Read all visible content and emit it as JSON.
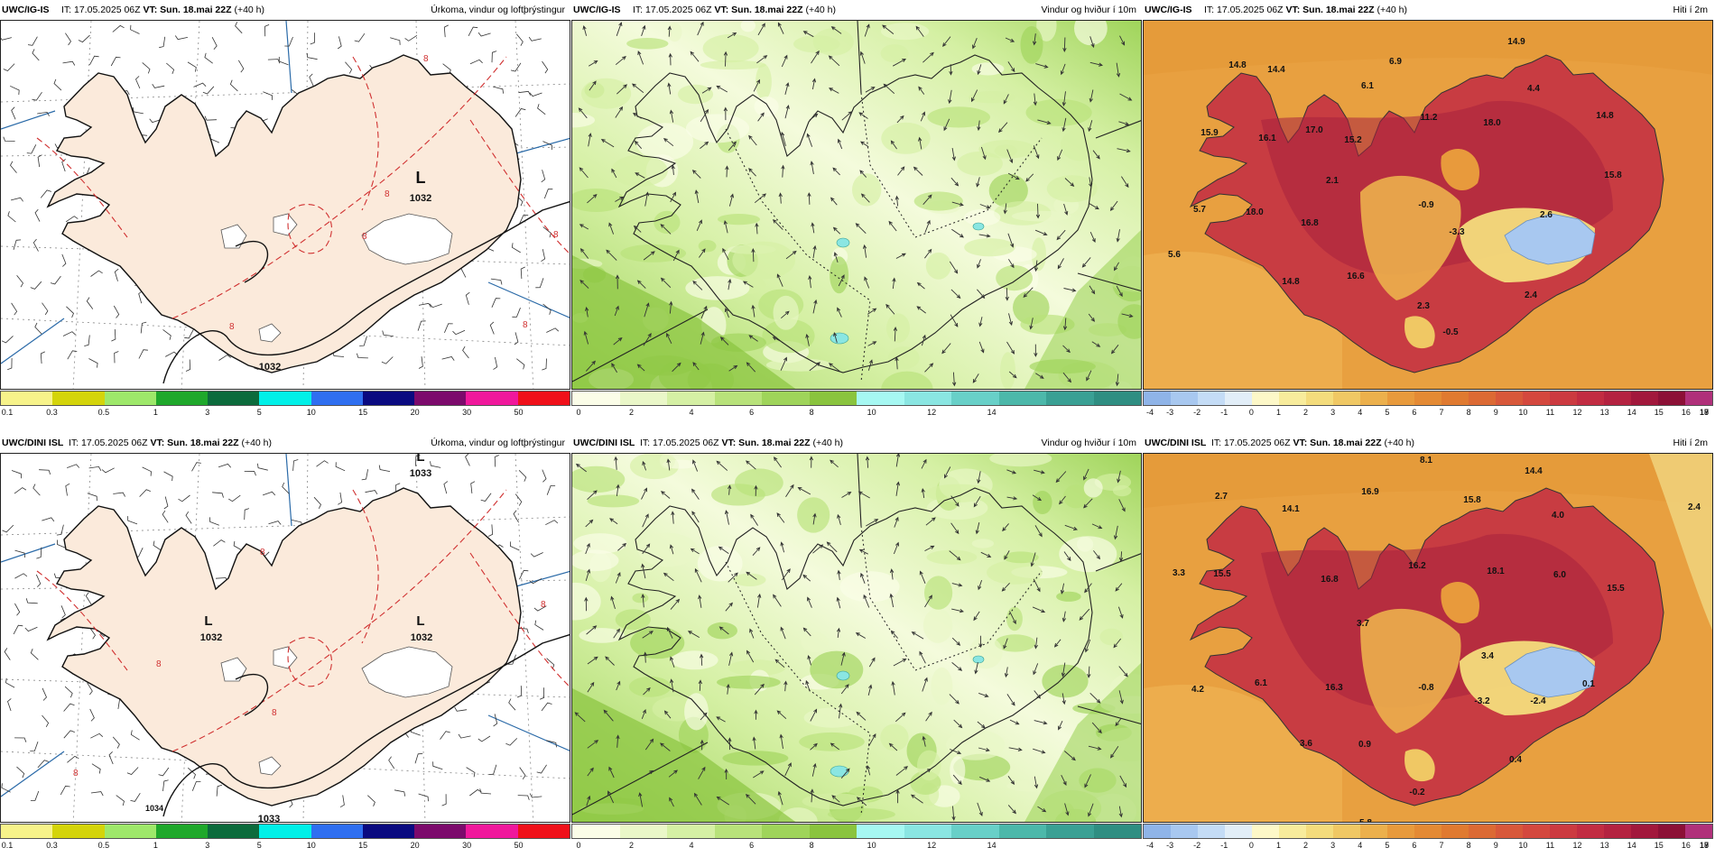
{
  "panels": [
    {
      "id": "p1",
      "model": "UWC/IG-IS",
      "it": " IT: 17.05.2025 06Z ",
      "vt_label": "VT:",
      "vt": " Sun. 18.mai 22Z",
      "lead": " (+40 h)",
      "field": "Úrkoma, vindur og loftþrýstingur",
      "type": "precip",
      "pressure_labels": [
        "L",
        "1032",
        "1032"
      ],
      "contour_labels": [
        "8",
        "8",
        "8",
        "8",
        "8",
        "8"
      ],
      "legend": {
        "colors": [
          "#f7f38a",
          "#d4d40a",
          "#9ee86a",
          "#1fa82b",
          "#0c6b3c",
          "#00f0e8",
          "#2f6ff0",
          "#0a0a80",
          "#7c0a6c",
          "#f0189c",
          "#f0101a"
        ],
        "ticks": [
          "0.1",
          "0.3",
          "0.5",
          "1",
          "3",
          "5",
          "10",
          "15",
          "20",
          "30",
          "50"
        ]
      }
    },
    {
      "id": "p2",
      "model": "UWC/IG-IS",
      "it": " IT: 17.05.2025 06Z ",
      "vt_label": "VT:",
      "vt": " Sun. 18.mai 22Z",
      "lead": " (+40 h)",
      "field": "Vindur og hviður í 10m",
      "type": "wind",
      "legend": {
        "colors": [
          "#fbfde8",
          "#eaf7c8",
          "#d5f0a4",
          "#b8e27a",
          "#9fd45a",
          "#8ac43e",
          "#a6f8f2",
          "#8ae6e2",
          "#68d0c8",
          "#4cb8aa",
          "#3aa094",
          "#2f8e82"
        ],
        "ticks": [
          "0",
          "2",
          "4",
          "6",
          "8",
          "10",
          "12",
          "14"
        ]
      }
    },
    {
      "id": "p3",
      "model": "UWC/IG-IS",
      "it": " IT: 17.05.2025 06Z ",
      "vt_label": "VT:",
      "vt": " Sun. 18.mai 22Z",
      "lead": " (+40 h)",
      "field": "Hiti í 2m",
      "type": "temp",
      "temps": [
        "14.8",
        "14.4",
        "15.9",
        "16.1",
        "17.0",
        "15.2",
        "6.1",
        "6.9",
        "11.2",
        "18.0",
        "14.9",
        "4.4",
        "14.8",
        "15.8",
        "2.1",
        "-0.9",
        "-3.3",
        "2.6",
        "5.7",
        "18.0",
        "16.8",
        "5.6",
        "14.8",
        "16.6",
        "2.3",
        "2.4",
        "-0.5"
      ],
      "legend": {
        "colors": [
          "#8fb4e8",
          "#a8c8f0",
          "#c4dcf6",
          "#e2eef8",
          "#fdf8c8",
          "#f8ec9c",
          "#f4dc7c",
          "#f0c864",
          "#ecb04c",
          "#e89a3c",
          "#e48a34",
          "#e07a30",
          "#dc6a34",
          "#d8583a",
          "#d4483e",
          "#cc3a40",
          "#c22c42",
          "#b42240",
          "#a2183c",
          "#8c1036",
          "#b0307a"
        ],
        "ticks": [
          "-4",
          "-3",
          "-2",
          "-1",
          "0",
          "1",
          "2",
          "3",
          "4",
          "5",
          "6",
          "7",
          "8",
          "9",
          "10",
          "11",
          "12",
          "13",
          "14",
          "15",
          "16",
          "17",
          "18",
          "19"
        ]
      }
    },
    {
      "id": "p4",
      "model": "UWC/DINI ISL",
      "it": " IT: 17.05.2025 06Z ",
      "vt_label": "VT:",
      "vt": " Sun. 18.mai 22Z",
      "lead": " (+40 h)",
      "field": "Úrkoma, vindur og loftþrýstingur",
      "type": "precip",
      "pressure_labels": [
        "L",
        "1033",
        "L",
        "1032",
        "L",
        "1032",
        "1033",
        "1034"
      ],
      "contour_labels": [
        "8",
        "8",
        "8",
        "8",
        "8"
      ],
      "legend": {
        "colors": [
          "#f7f38a",
          "#d4d40a",
          "#9ee86a",
          "#1fa82b",
          "#0c6b3c",
          "#00f0e8",
          "#2f6ff0",
          "#0a0a80",
          "#7c0a6c",
          "#f0189c",
          "#f0101a"
        ],
        "ticks": [
          "0.1",
          "0.3",
          "0.5",
          "1",
          "3",
          "5",
          "10",
          "15",
          "20",
          "30",
          "50"
        ]
      }
    },
    {
      "id": "p5",
      "model": "UWC/DINI ISL",
      "it": " IT: 17.05.2025 06Z ",
      "vt_label": "VT:",
      "vt": " Sun. 18.mai 22Z",
      "lead": " (+40 h)",
      "field": "Vindur og hviður í 10m",
      "type": "wind",
      "legend": {
        "colors": [
          "#fbfde8",
          "#eaf7c8",
          "#d5f0a4",
          "#b8e27a",
          "#9fd45a",
          "#8ac43e",
          "#a6f8f2",
          "#8ae6e2",
          "#68d0c8",
          "#4cb8aa",
          "#3aa094",
          "#2f8e82"
        ],
        "ticks": [
          "0",
          "2",
          "4",
          "6",
          "8",
          "10",
          "12",
          "14"
        ]
      }
    },
    {
      "id": "p6",
      "model": "UWC/DINI ISL",
      "it": " IT: 17.05.2025 06Z ",
      "vt_label": "VT:",
      "vt": " Sun. 18.mai 22Z",
      "lead": " (+40 h)",
      "field": "Hiti í 2m",
      "type": "temp",
      "temps": [
        "8.1",
        "14.4",
        "2.7",
        "14.1",
        "16.9",
        "15.8",
        "4.0",
        "2.4",
        "3.3",
        "15.5",
        "16.8",
        "16.2",
        "18.1",
        "6.0",
        "15.5",
        "3.7",
        "3.4",
        "4.2",
        "6.1",
        "16.3",
        "-0.8",
        "-3.2",
        "-2.4",
        "0.1",
        "3.6",
        "0.9",
        "0.4",
        "-0.2",
        "5.8"
      ],
      "legend": {
        "colors": [
          "#8fb4e8",
          "#a8c8f0",
          "#c4dcf6",
          "#e2eef8",
          "#fdf8c8",
          "#f8ec9c",
          "#f4dc7c",
          "#f0c864",
          "#ecb04c",
          "#e89a3c",
          "#e48a34",
          "#e07a30",
          "#dc6a34",
          "#d8583a",
          "#d4483e",
          "#cc3a40",
          "#c22c42",
          "#b42240",
          "#a2183c",
          "#8c1036",
          "#b0307a"
        ],
        "ticks": [
          "-4",
          "-3",
          "-2",
          "-1",
          "0",
          "1",
          "2",
          "3",
          "4",
          "5",
          "6",
          "7",
          "8",
          "9",
          "10",
          "11",
          "12",
          "13",
          "14",
          "15",
          "16",
          "17",
          "18",
          "19"
        ]
      }
    }
  ]
}
